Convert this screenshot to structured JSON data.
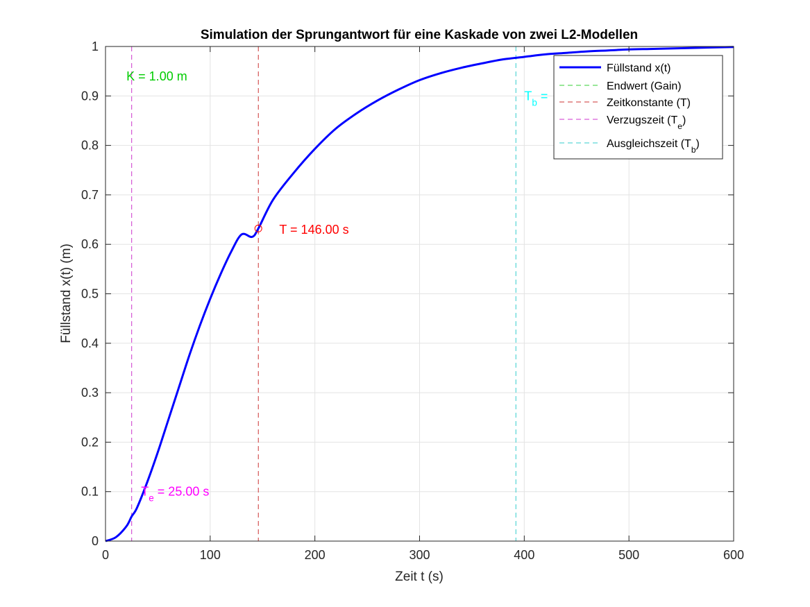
{
  "chart_data": {
    "type": "line",
    "title": "Simulation der Sprungantwort für eine Kaskade von zwei L2-Modellen",
    "xlabel": "Zeit t (s)",
    "ylabel": "Füllstand x(t) (m)",
    "xlim": [
      0,
      600
    ],
    "ylim": [
      0,
      1
    ],
    "xticks": [
      0,
      100,
      200,
      300,
      400,
      500,
      600
    ],
    "xtick_labels": [
      "0",
      "100",
      "200",
      "300",
      "400",
      "500",
      "600"
    ],
    "yticks": [
      0,
      0.1,
      0.2,
      0.3,
      0.4,
      0.5,
      0.6,
      0.7,
      0.8,
      0.9,
      1
    ],
    "ytick_labels": [
      "0",
      "0.1",
      "0.2",
      "0.3",
      "0.4",
      "0.5",
      "0.6",
      "0.7",
      "0.8",
      "0.9",
      "1"
    ],
    "grid": true,
    "legend_position": "top-right",
    "series": [
      {
        "name": "Füllstand x(t)",
        "color": "#0000ff",
        "style": "solid",
        "x": [
          0,
          10,
          20,
          25,
          30,
          40,
          50,
          60,
          70,
          80,
          90,
          100,
          110,
          120,
          130,
          140,
          146,
          160,
          180,
          200,
          220,
          240,
          260,
          280,
          300,
          320,
          340,
          360,
          380,
          400,
          420,
          440,
          460,
          480,
          500,
          520,
          540,
          560,
          580,
          600
        ],
        "y": [
          0,
          0.008,
          0.03,
          0.05,
          0.067,
          0.12,
          0.18,
          0.245,
          0.31,
          0.375,
          0.435,
          0.49,
          0.54,
          0.585,
          0.62,
          0.615,
          0.632,
          0.69,
          0.745,
          0.793,
          0.834,
          0.865,
          0.891,
          0.913,
          0.932,
          0.946,
          0.957,
          0.966,
          0.974,
          0.979,
          0.984,
          0.987,
          0.99,
          0.992,
          0.994,
          0.995,
          0.996,
          0.997,
          0.998,
          0.999
        ]
      },
      {
        "name": "Endwert (Gain)",
        "color": "#33cc33",
        "style": "dashed",
        "orientation": "horizontal",
        "value": 1.0
      },
      {
        "name": "Zeitkonstante (T)",
        "color": "#cc3333",
        "style": "dashed",
        "orientation": "vertical",
        "value": 146
      },
      {
        "name": "Verzugszeit (Te)",
        "name_main": "Verzugszeit (T",
        "name_sub": "e",
        "name_tail": ")",
        "color": "#cc33cc",
        "style": "dashed",
        "orientation": "vertical",
        "value": 25
      },
      {
        "name": "Ausgleichszeit (Tb)",
        "name_main": "Ausgleichszeit (T",
        "name_sub": "b",
        "name_tail": ")",
        "color": "#33cccc",
        "style": "dashed",
        "orientation": "vertical",
        "value": 392
      }
    ],
    "annotations": [
      {
        "id": "gain",
        "text": "K = 1.00 m",
        "x": 20,
        "y": 0.94,
        "color": "#00cc00"
      },
      {
        "id": "tconst",
        "text": "T = 146.00 s",
        "x": 166,
        "y": 0.63,
        "color": "#ff0000"
      },
      {
        "id": "te",
        "text_main": "T",
        "text_sub": "e",
        "text_tail": " = 25.00 s",
        "x": 34,
        "y": 0.1,
        "color": "#ff00ff"
      },
      {
        "id": "tb",
        "text_main": "T",
        "text_sub": "b",
        "text_tail": " =",
        "x": 400,
        "y": 0.9,
        "color": "#00ffff"
      }
    ],
    "marker": {
      "x": 146,
      "y": 0.632,
      "shape": "circle",
      "color": "#ff0000"
    }
  }
}
